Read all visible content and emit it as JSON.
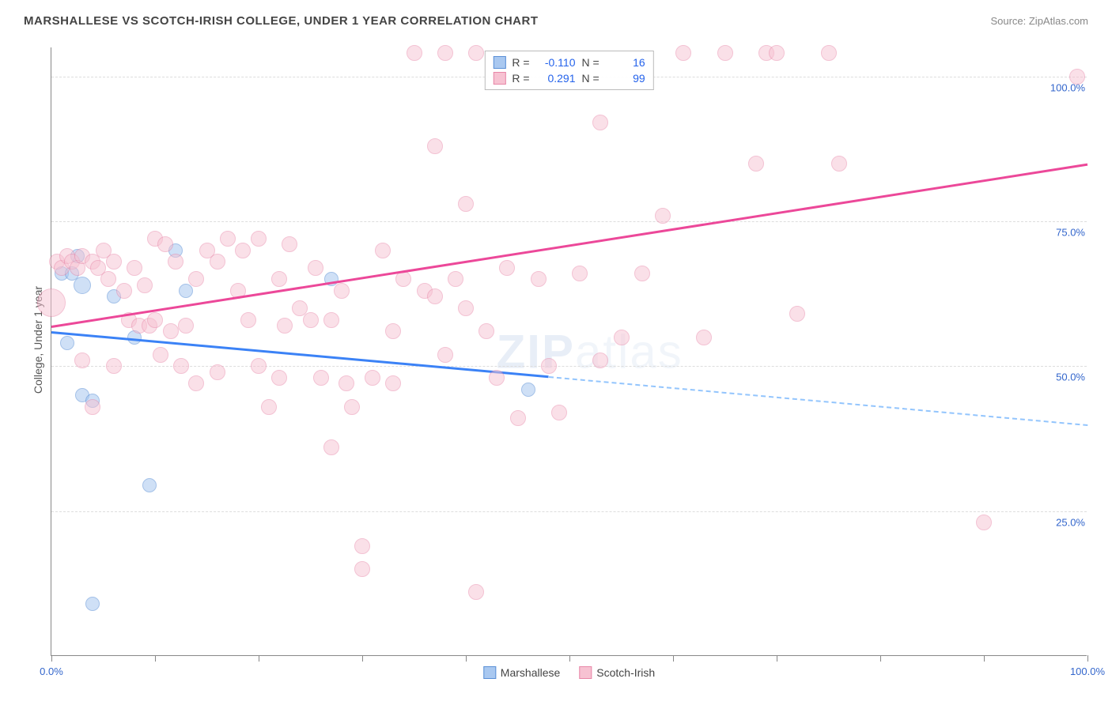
{
  "header": {
    "title": "MARSHALLESE VS SCOTCH-IRISH COLLEGE, UNDER 1 YEAR CORRELATION CHART",
    "source": "Source: ZipAtlas.com"
  },
  "watermark": {
    "bold": "ZIP",
    "light": "atlas"
  },
  "chart": {
    "type": "scatter",
    "y_axis_label": "College, Under 1 year",
    "background_color": "#ffffff",
    "grid_color": "#dddddd",
    "axis_color": "#888888",
    "text_color": "#555555",
    "value_color": "#2563eb",
    "xlim": [
      0,
      100
    ],
    "ylim": [
      0,
      105
    ],
    "x_ticks": [
      0,
      10,
      20,
      30,
      40,
      50,
      60,
      70,
      80,
      90,
      100
    ],
    "x_tick_labels": {
      "0": "0.0%",
      "100": "100.0%"
    },
    "y_gridlines": [
      25,
      50,
      75,
      100
    ],
    "y_tick_labels": {
      "25": "25.0%",
      "50": "50.0%",
      "75": "75.0%",
      "100": "100.0%"
    },
    "legend": {
      "items": [
        {
          "label": "Marshallese",
          "fill": "#a9c8f0",
          "stroke": "#5a8fd6"
        },
        {
          "label": "Scotch-Irish",
          "fill": "#f7c2d2",
          "stroke": "#e887a8"
        }
      ]
    },
    "stats_box": {
      "rows": [
        {
          "swatch_fill": "#a9c8f0",
          "swatch_stroke": "#5a8fd6",
          "r_label": "R =",
          "r_value": "-0.110",
          "n_label": "N =",
          "n_value": "16"
        },
        {
          "swatch_fill": "#f7c2d2",
          "swatch_stroke": "#e887a8",
          "r_label": "R =",
          "r_value": "0.291",
          "n_label": "N =",
          "n_value": "99"
        }
      ]
    },
    "series": [
      {
        "name": "Marshallese",
        "fill": "#a9c8f0",
        "stroke": "#5a8fd6",
        "fill_opacity": 0.55,
        "marker_radius": 9,
        "trend": {
          "x1": 0,
          "y1": 56,
          "x2": 100,
          "y2": 40,
          "solid_until_x": 48
        },
        "points": [
          {
            "x": 1,
            "y": 66
          },
          {
            "x": 2,
            "y": 66
          },
          {
            "x": 2.5,
            "y": 69
          },
          {
            "x": 3,
            "y": 64,
            "r": 11
          },
          {
            "x": 3,
            "y": 45
          },
          {
            "x": 4,
            "y": 44
          },
          {
            "x": 4,
            "y": 9
          },
          {
            "x": 6,
            "y": 62
          },
          {
            "x": 8,
            "y": 55
          },
          {
            "x": 9.5,
            "y": 29.5
          },
          {
            "x": 12,
            "y": 70
          },
          {
            "x": 13,
            "y": 63
          },
          {
            "x": 27,
            "y": 65
          },
          {
            "x": 46,
            "y": 46
          },
          {
            "x": 1.5,
            "y": 54
          }
        ]
      },
      {
        "name": "Scotch-Irish",
        "fill": "#f7c2d2",
        "stroke": "#e887a8",
        "fill_opacity": 0.5,
        "marker_radius": 10,
        "trend": {
          "x1": 0,
          "y1": 57,
          "x2": 100,
          "y2": 85,
          "solid_until_x": 100
        },
        "points": [
          {
            "x": 0,
            "y": 61,
            "r": 18
          },
          {
            "x": 0.5,
            "y": 68
          },
          {
            "x": 1,
            "y": 67
          },
          {
            "x": 1.5,
            "y": 69
          },
          {
            "x": 2,
            "y": 68
          },
          {
            "x": 2.5,
            "y": 67
          },
          {
            "x": 3,
            "y": 69
          },
          {
            "x": 3,
            "y": 51
          },
          {
            "x": 4,
            "y": 68
          },
          {
            "x": 4.5,
            "y": 67
          },
          {
            "x": 4,
            "y": 43
          },
          {
            "x": 5,
            "y": 70
          },
          {
            "x": 5.5,
            "y": 65
          },
          {
            "x": 6,
            "y": 68
          },
          {
            "x": 6,
            "y": 50
          },
          {
            "x": 7,
            "y": 63
          },
          {
            "x": 7.5,
            "y": 58
          },
          {
            "x": 8,
            "y": 67
          },
          {
            "x": 8.5,
            "y": 57
          },
          {
            "x": 9,
            "y": 64
          },
          {
            "x": 9.5,
            "y": 57
          },
          {
            "x": 10,
            "y": 72
          },
          {
            "x": 10,
            "y": 58
          },
          {
            "x": 10.5,
            "y": 52
          },
          {
            "x": 11,
            "y": 71
          },
          {
            "x": 11.5,
            "y": 56
          },
          {
            "x": 12,
            "y": 68
          },
          {
            "x": 12.5,
            "y": 50
          },
          {
            "x": 13,
            "y": 57
          },
          {
            "x": 14,
            "y": 65
          },
          {
            "x": 14,
            "y": 47
          },
          {
            "x": 15,
            "y": 70
          },
          {
            "x": 16,
            "y": 68
          },
          {
            "x": 16,
            "y": 49
          },
          {
            "x": 17,
            "y": 72
          },
          {
            "x": 18,
            "y": 63
          },
          {
            "x": 18.5,
            "y": 70
          },
          {
            "x": 19,
            "y": 58
          },
          {
            "x": 20,
            "y": 72
          },
          {
            "x": 20,
            "y": 50
          },
          {
            "x": 21,
            "y": 43
          },
          {
            "x": 22,
            "y": 65
          },
          {
            "x": 22,
            "y": 48
          },
          {
            "x": 22.5,
            "y": 57
          },
          {
            "x": 23,
            "y": 71
          },
          {
            "x": 24,
            "y": 60
          },
          {
            "x": 25,
            "y": 58
          },
          {
            "x": 25.5,
            "y": 67
          },
          {
            "x": 26,
            "y": 48
          },
          {
            "x": 27,
            "y": 58
          },
          {
            "x": 27,
            "y": 36
          },
          {
            "x": 28,
            "y": 63
          },
          {
            "x": 28.5,
            "y": 47
          },
          {
            "x": 29,
            "y": 43
          },
          {
            "x": 30,
            "y": 15
          },
          {
            "x": 30,
            "y": 19
          },
          {
            "x": 31,
            "y": 48
          },
          {
            "x": 32,
            "y": 70
          },
          {
            "x": 33,
            "y": 56
          },
          {
            "x": 33,
            "y": 47
          },
          {
            "x": 34,
            "y": 65
          },
          {
            "x": 35,
            "y": 104
          },
          {
            "x": 36,
            "y": 63
          },
          {
            "x": 37,
            "y": 88
          },
          {
            "x": 37,
            "y": 62
          },
          {
            "x": 38,
            "y": 104
          },
          {
            "x": 38,
            "y": 52
          },
          {
            "x": 39,
            "y": 65
          },
          {
            "x": 40,
            "y": 78
          },
          {
            "x": 40,
            "y": 60
          },
          {
            "x": 41,
            "y": 104
          },
          {
            "x": 41,
            "y": 11
          },
          {
            "x": 42,
            "y": 56
          },
          {
            "x": 43,
            "y": 48
          },
          {
            "x": 44,
            "y": 67
          },
          {
            "x": 45,
            "y": 41
          },
          {
            "x": 47,
            "y": 65
          },
          {
            "x": 48,
            "y": 50
          },
          {
            "x": 49,
            "y": 42
          },
          {
            "x": 51,
            "y": 66
          },
          {
            "x": 53,
            "y": 92
          },
          {
            "x": 53,
            "y": 51
          },
          {
            "x": 55,
            "y": 55
          },
          {
            "x": 57,
            "y": 66
          },
          {
            "x": 59,
            "y": 76
          },
          {
            "x": 61,
            "y": 104
          },
          {
            "x": 63,
            "y": 55
          },
          {
            "x": 65,
            "y": 104
          },
          {
            "x": 68,
            "y": 85
          },
          {
            "x": 69,
            "y": 104
          },
          {
            "x": 70,
            "y": 104
          },
          {
            "x": 72,
            "y": 59
          },
          {
            "x": 75,
            "y": 104
          },
          {
            "x": 76,
            "y": 85
          },
          {
            "x": 90,
            "y": 23
          },
          {
            "x": 99,
            "y": 100
          }
        ]
      }
    ]
  }
}
